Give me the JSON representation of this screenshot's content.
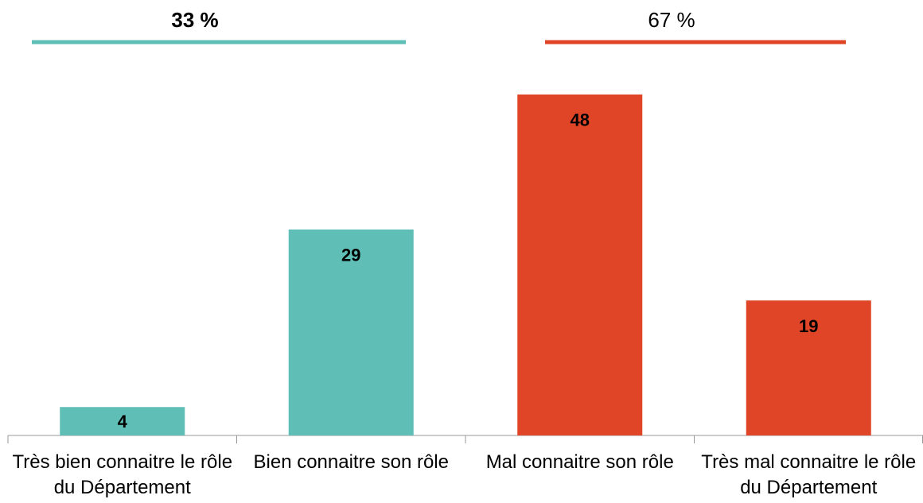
{
  "chart_data": {
    "type": "bar",
    "categories": [
      "Très bien connaitre le rôle du Département",
      "Bien connaitre son rôle",
      "Mal connaitre son rôle",
      "Très mal connaitre le rôle du Département"
    ],
    "values": [
      4,
      29,
      48,
      19
    ],
    "colors": [
      "#5fbfb7",
      "#5fbfb7",
      "#e04527",
      "#e04527"
    ],
    "groups": [
      {
        "label": "33 %",
        "color": "#5fbfb7",
        "bold": true
      },
      {
        "label": "67 %",
        "color": "#e04527",
        "bold": false
      }
    ]
  }
}
